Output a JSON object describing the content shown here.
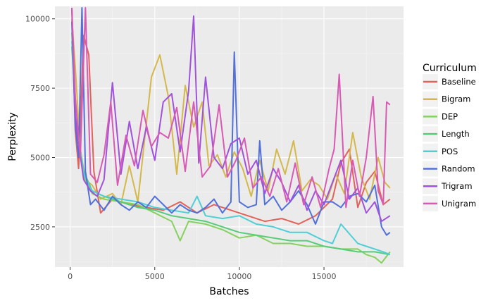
{
  "chart_data": {
    "type": "line",
    "title": "",
    "xlabel": "Batches",
    "ylabel": "Perplexity",
    "xlim": [
      -900,
      19700
    ],
    "ylim": [
      1050,
      10450
    ],
    "x_ticks": [
      0,
      5000,
      10000,
      15000
    ],
    "y_ticks": [
      2500,
      5000,
      7500,
      10000
    ],
    "grid": true,
    "legend": {
      "title": "Curriculum",
      "position": "right"
    },
    "series": [
      {
        "name": "Baseline",
        "color": "#E3625A",
        "x": [
          100,
          300,
          500,
          800,
          1100,
          1400,
          1800,
          2500,
          3500,
          4500,
          5500,
          6500,
          7500,
          8500,
          9500,
          10500,
          11500,
          12500,
          13500,
          14500,
          15500,
          16000,
          16500,
          17000,
          17500,
          18000,
          18500,
          18900
        ],
        "y": [
          10400,
          6000,
          4600,
          9400,
          8700,
          4500,
          3000,
          3500,
          3300,
          3200,
          3100,
          3400,
          3000,
          3300,
          3100,
          2900,
          2700,
          2800,
          2600,
          2900,
          3500,
          4800,
          5300,
          3200,
          4100,
          4500,
          3300,
          3500
        ]
      },
      {
        "name": "Bigram",
        "color": "#D4B84A",
        "x": [
          100,
          300,
          600,
          900,
          1300,
          1800,
          2500,
          3000,
          3500,
          4000,
          4800,
          5300,
          5800,
          6300,
          6800,
          7300,
          7800,
          8200,
          8700,
          9200,
          9700,
          10200,
          10700,
          11200,
          11700,
          12200,
          12700,
          13200,
          13700,
          14200,
          14700,
          15200,
          15700,
          16200,
          16700,
          17200,
          17700,
          18200,
          18600,
          18900
        ],
        "y": [
          10000,
          8300,
          5300,
          4200,
          4000,
          3500,
          3700,
          3300,
          4700,
          3400,
          7900,
          8700,
          7200,
          4400,
          7600,
          6100,
          7000,
          4700,
          5100,
          4300,
          5200,
          4600,
          3600,
          4900,
          3800,
          5300,
          4400,
          5600,
          3800,
          4200,
          4000,
          3500,
          4400,
          3700,
          5900,
          4300,
          3500,
          5000,
          4100,
          3900
        ]
      },
      {
        "name": "DEP",
        "color": "#86D15E",
        "x": [
          100,
          400,
          800,
          1300,
          2000,
          3000,
          4000,
          5000,
          6000,
          6500,
          7000,
          8000,
          9000,
          10000,
          11000,
          12000,
          13000,
          14000,
          15000,
          16000,
          17000,
          17500,
          18000,
          18400,
          18900
        ],
        "y": [
          9500,
          6000,
          4300,
          3700,
          3500,
          3400,
          3300,
          3000,
          2700,
          2000,
          2700,
          2600,
          2400,
          2100,
          2200,
          1900,
          1900,
          1800,
          1800,
          1700,
          1700,
          1500,
          1400,
          1200,
          1600
        ]
      },
      {
        "name": "Length",
        "color": "#55CC7A",
        "x": [
          100,
          400,
          800,
          1300,
          2000,
          3000,
          4000,
          5000,
          6000,
          7000,
          8000,
          9000,
          10000,
          11000,
          12000,
          13000,
          14000,
          15000,
          16000,
          17000,
          18000,
          18900
        ],
        "y": [
          9000,
          6000,
          4500,
          3800,
          3600,
          3400,
          3200,
          3100,
          2900,
          2800,
          2700,
          2500,
          2300,
          2200,
          2100,
          2000,
          2000,
          1800,
          1700,
          1600,
          1600,
          1500
        ]
      },
      {
        "name": "POS",
        "color": "#4DCFD5",
        "x": [
          100,
          400,
          800,
          1300,
          2000,
          3000,
          4000,
          5000,
          6000,
          7000,
          7500,
          8000,
          9000,
          10000,
          11000,
          12000,
          13000,
          14000,
          15000,
          15500,
          16000,
          17000,
          17500,
          18000,
          18500,
          18900
        ],
        "y": [
          9200,
          6200,
          4400,
          3800,
          3600,
          3500,
          3400,
          3200,
          3100,
          3000,
          3600,
          2900,
          2800,
          2900,
          2600,
          2500,
          2300,
          2300,
          2000,
          1900,
          2600,
          1900,
          1800,
          1700,
          1600,
          1500
        ]
      },
      {
        "name": "Random",
        "color": "#5270DA",
        "x": [
          100,
          300,
          500,
          700,
          900,
          1200,
          1500,
          2000,
          2500,
          3000,
          3500,
          4000,
          4500,
          5000,
          5500,
          6000,
          6500,
          7000,
          7500,
          8000,
          8500,
          9000,
          9500,
          9700,
          10000,
          10500,
          11000,
          11200,
          11500,
          12000,
          12500,
          13000,
          13500,
          14000,
          14500,
          15000,
          15500,
          16000,
          16500,
          17000,
          17500,
          18000,
          18400,
          18700,
          18900
        ],
        "y": [
          9900,
          6200,
          5000,
          10400,
          4500,
          3300,
          3500,
          3100,
          3600,
          3300,
          3100,
          3400,
          3200,
          3600,
          3300,
          3000,
          3300,
          3100,
          3000,
          3200,
          3500,
          3000,
          3400,
          8800,
          3400,
          3200,
          3300,
          5600,
          3300,
          3600,
          3100,
          3400,
          3800,
          3300,
          2600,
          3400,
          3400,
          3200,
          3600,
          3700,
          3400,
          4000,
          2500,
          2200,
          2300
        ]
      },
      {
        "name": "Trigram",
        "color": "#A152DD",
        "x": [
          100,
          300,
          500,
          800,
          1200,
          1600,
          2000,
          2500,
          3000,
          3500,
          4000,
          4500,
          5000,
          5500,
          6000,
          6500,
          7000,
          7300,
          7600,
          8000,
          8500,
          9000,
          9500,
          10000,
          10500,
          11000,
          11500,
          12000,
          12500,
          13000,
          13500,
          14000,
          14500,
          15000,
          15500,
          16000,
          16500,
          17000,
          17500,
          18000,
          18400,
          18900
        ],
        "y": [
          10400,
          6500,
          5500,
          4200,
          3800,
          3600,
          4200,
          7700,
          4400,
          6300,
          4600,
          6100,
          4900,
          7000,
          7300,
          5200,
          7400,
          10100,
          4800,
          7900,
          5000,
          4600,
          5500,
          5700,
          4400,
          4900,
          3700,
          4600,
          4100,
          3400,
          4000,
          3100,
          3800,
          3300,
          4100,
          4900,
          3500,
          3900,
          3000,
          3400,
          2700,
          2900
        ]
      },
      {
        "name": "Unigram",
        "color": "#D85AB4",
        "x": [
          100,
          300,
          600,
          900,
          1200,
          1600,
          2000,
          2400,
          2800,
          3300,
          3800,
          4300,
          4800,
          5300,
          5800,
          6300,
          6800,
          7300,
          7800,
          8300,
          8800,
          9300,
          9800,
          10300,
          10800,
          11300,
          11800,
          12300,
          12800,
          13300,
          13800,
          14300,
          14800,
          15300,
          15600,
          15900,
          16300,
          16700,
          17100,
          17500,
          17900,
          18200,
          18500,
          18700,
          18900
        ],
        "y": [
          10400,
          7200,
          5000,
          10400,
          4400,
          4100,
          5100,
          7000,
          4000,
          5800,
          4700,
          6700,
          5400,
          5900,
          5700,
          6800,
          4500,
          7000,
          4300,
          4700,
          6900,
          4300,
          4900,
          5700,
          3900,
          4300,
          3600,
          4600,
          3400,
          4800,
          3300,
          4300,
          3200,
          4600,
          5300,
          8000,
          3200,
          4900,
          3600,
          5000,
          7200,
          3800,
          3300,
          7000,
          6900
        ]
      }
    ]
  }
}
